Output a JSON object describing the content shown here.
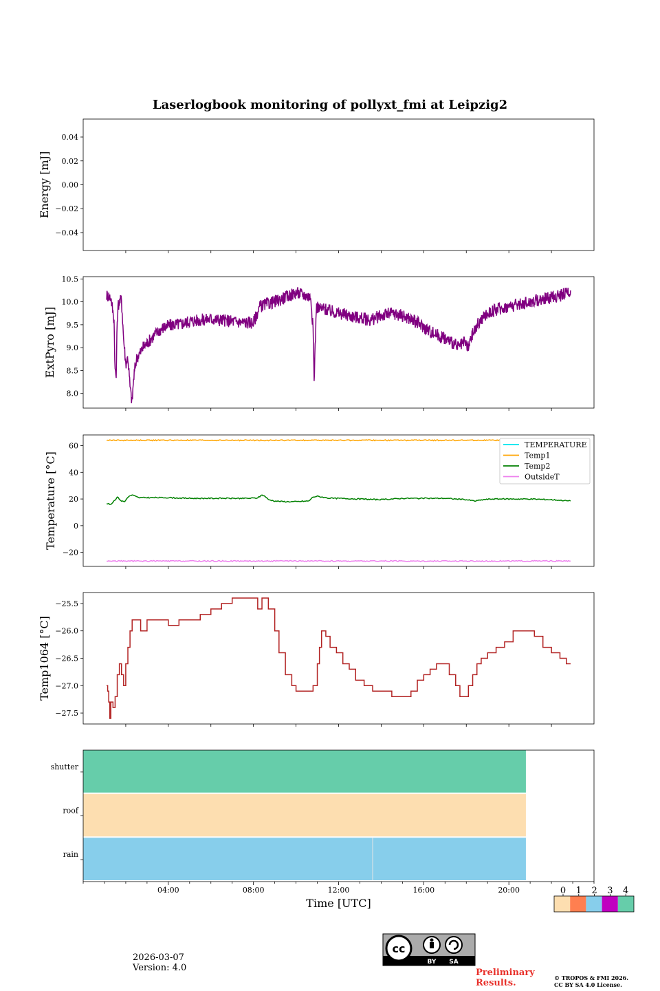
{
  "title": "Laserlogbook monitoring of pollyxt_fmi at Leipzig2",
  "footer": {
    "date": "2026-03-07",
    "version": "Version: 4.0",
    "preliminary_line1": "Preliminary",
    "preliminary_line2": "Results.",
    "copyright_line1": "© TROPOS & FMI 2026.",
    "copyright_line2": "CC BY SA 4.0 License.",
    "license_badge": {
      "cc": "cc",
      "by": "BY",
      "sa": "SA"
    }
  },
  "colorbar": {
    "ticks": [
      "0",
      "1",
      "2",
      "3",
      "4"
    ],
    "colors": [
      "#fddeb0",
      "#ff7f50",
      "#87ceeb",
      "#c000c0",
      "#66cdaa"
    ]
  },
  "chart_data": [
    {
      "type": "line",
      "panel": "energy",
      "ylabel": "Energy [mJ]",
      "ylim": [
        -0.055,
        0.055
      ],
      "yticks": [
        0.04,
        0.02,
        0.0,
        -0.02,
        -0.04
      ],
      "ytick_labels": [
        "0.04",
        "0.02",
        "0.00",
        "−0.02",
        "−0.04"
      ],
      "xlim": [
        0,
        24
      ],
      "series": []
    },
    {
      "type": "line",
      "panel": "extpyro",
      "ylabel": "ExtPyro [mJ]",
      "ylim": [
        7.68,
        10.55
      ],
      "yticks": [
        10.5,
        10.0,
        9.5,
        9.0,
        8.5,
        8.0
      ],
      "ytick_labels": [
        "10.5",
        "10.0",
        "9.5",
        "9.0",
        "8.5",
        "8.0"
      ],
      "xlim": [
        0,
        24
      ],
      "series": [
        {
          "name": "ExtPyro",
          "color": "#800080",
          "x": [
            1.1,
            1.3,
            1.45,
            1.5,
            1.55,
            1.6,
            1.65,
            1.7,
            1.8,
            1.9,
            2.0,
            2.1,
            2.2,
            2.25,
            2.3,
            2.35,
            2.4,
            2.5,
            2.6,
            2.7,
            2.8,
            3.0,
            3.2,
            3.5,
            3.8,
            4.2,
            4.6,
            5.0,
            5.5,
            6.0,
            6.5,
            7.0,
            7.5,
            8.0,
            8.3,
            8.6,
            9.0,
            9.5,
            10.0,
            10.4,
            10.7,
            10.8,
            10.85,
            10.9,
            10.95,
            11.0,
            11.1,
            11.3,
            11.6,
            12.0,
            12.5,
            13.0,
            13.5,
            14.0,
            14.5,
            15.0,
            15.5,
            16.0,
            16.5,
            17.0,
            17.4,
            17.6,
            17.9,
            18.1,
            18.3,
            18.6,
            19.0,
            19.5,
            20.0,
            20.5,
            21.0,
            21.5,
            22.0,
            22.5,
            22.9
          ],
          "values": [
            10.15,
            10.1,
            9.6,
            8.5,
            8.35,
            9.6,
            9.95,
            10.0,
            10.05,
            9.2,
            8.65,
            8.8,
            8.15,
            7.95,
            7.8,
            8.2,
            8.45,
            8.75,
            8.85,
            8.9,
            9.0,
            9.1,
            9.2,
            9.35,
            9.45,
            9.5,
            9.52,
            9.58,
            9.6,
            9.63,
            9.6,
            9.58,
            9.55,
            9.55,
            9.9,
            9.95,
            10.0,
            10.1,
            10.2,
            10.15,
            10.1,
            9.4,
            8.3,
            9.0,
            9.85,
            9.9,
            9.85,
            9.85,
            9.8,
            9.75,
            9.7,
            9.65,
            9.6,
            9.7,
            9.75,
            9.7,
            9.6,
            9.45,
            9.3,
            9.2,
            9.1,
            9.0,
            9.1,
            9.0,
            9.3,
            9.55,
            9.75,
            9.85,
            9.9,
            9.95,
            10.0,
            10.05,
            10.1,
            10.15,
            10.25
          ]
        }
      ]
    },
    {
      "type": "line",
      "panel": "temperature",
      "ylabel": "Temperature [°C]",
      "ylim": [
        -30.5,
        68
      ],
      "yticks": [
        60,
        40,
        20,
        0,
        -20
      ],
      "ytick_labels": [
        "60",
        "40",
        "20",
        "0",
        "−20"
      ],
      "xlim": [
        0,
        24
      ],
      "legend": [
        "TEMPERATURE",
        "Temp1",
        "Temp2",
        "OutsideT"
      ],
      "series": [
        {
          "name": "TEMPERATURE",
          "color": "#00e5ee",
          "x": [],
          "values": []
        },
        {
          "name": "Temp1",
          "color": "#ffa500",
          "x": [
            1.1,
            22.9
          ],
          "values": [
            64,
            64
          ]
        },
        {
          "name": "Temp2",
          "color": "#008000",
          "x": [
            1.1,
            1.3,
            1.5,
            1.6,
            1.8,
            1.95,
            2.1,
            2.3,
            2.6,
            3.0,
            4.0,
            5.0,
            6.0,
            7.0,
            7.8,
            8.2,
            8.4,
            8.55,
            8.7,
            9.0,
            9.5,
            10.0,
            10.6,
            10.8,
            11.0,
            11.2,
            11.6,
            12.0,
            13.0,
            14.0,
            15.0,
            16.0,
            17.0,
            18.0,
            18.4,
            18.8,
            19.2,
            20.0,
            21.0,
            22.0,
            22.9
          ],
          "values": [
            16.5,
            16.0,
            19.5,
            21.5,
            18.5,
            18.0,
            21.5,
            23.0,
            21.0,
            21.0,
            21.0,
            20.5,
            20.5,
            20.5,
            20.5,
            20.8,
            23.0,
            22.0,
            19.5,
            18.5,
            18.0,
            18.0,
            18.5,
            21.5,
            22.0,
            21.5,
            20.5,
            20.5,
            20.0,
            19.5,
            20.5,
            20.5,
            20.5,
            19.5,
            18.5,
            19.5,
            20.0,
            20.0,
            20.0,
            19.5,
            18.5
          ]
        },
        {
          "name": "OutsideT",
          "color": "#ee82ee",
          "x": [
            1.1,
            22.9
          ],
          "values": [
            -26.5,
            -26.5
          ]
        }
      ]
    },
    {
      "type": "line",
      "panel": "temp1064",
      "ylabel": "Temp1064 [°C]",
      "ylim": [
        -27.7,
        -25.3
      ],
      "yticks": [
        -25.5,
        -26.0,
        -26.5,
        -27.0,
        -27.5
      ],
      "ytick_labels": [
        "−25.5",
        "−26.0",
        "−26.5",
        "−27.0",
        "−27.5"
      ],
      "xlim": [
        0.0,
        24.0
      ],
      "series": [
        {
          "name": "Temp1064",
          "color": "#b22222",
          "x": [
            1.1,
            1.15,
            1.2,
            1.25,
            1.3,
            1.4,
            1.5,
            1.6,
            1.7,
            1.8,
            1.9,
            2.0,
            2.1,
            2.2,
            2.3,
            2.5,
            2.7,
            3.0,
            3.5,
            4.0,
            4.5,
            5.0,
            5.5,
            6.0,
            6.5,
            7.0,
            7.5,
            8.0,
            8.2,
            8.4,
            8.5,
            8.7,
            9.0,
            9.2,
            9.5,
            9.8,
            10.0,
            10.5,
            10.8,
            11.0,
            11.1,
            11.2,
            11.4,
            11.6,
            11.9,
            12.2,
            12.5,
            12.8,
            13.2,
            13.6,
            14.0,
            14.5,
            15.0,
            15.4,
            15.7,
            16.0,
            16.3,
            16.6,
            16.9,
            17.2,
            17.5,
            17.7,
            17.9,
            18.1,
            18.3,
            18.5,
            18.7,
            19.0,
            19.4,
            19.8,
            20.2,
            20.5,
            20.8,
            21.2,
            21.6,
            22.0,
            22.4,
            22.7,
            22.9
          ],
          "values": [
            -27.0,
            -27.1,
            -27.3,
            -27.6,
            -27.3,
            -27.4,
            -27.2,
            -26.8,
            -26.6,
            -26.8,
            -27.0,
            -26.6,
            -26.3,
            -26.0,
            -25.8,
            -25.8,
            -26.0,
            -25.8,
            -25.8,
            -25.9,
            -25.8,
            -25.8,
            -25.7,
            -25.6,
            -25.5,
            -25.4,
            -25.4,
            -25.4,
            -25.6,
            -25.4,
            -25.4,
            -25.6,
            -26.0,
            -26.4,
            -26.8,
            -27.0,
            -27.1,
            -27.1,
            -27.0,
            -26.6,
            -26.3,
            -26.0,
            -26.1,
            -26.3,
            -26.4,
            -26.6,
            -26.7,
            -26.9,
            -27.0,
            -27.1,
            -27.1,
            -27.2,
            -27.2,
            -27.1,
            -26.9,
            -26.8,
            -26.7,
            -26.6,
            -26.6,
            -26.8,
            -27.0,
            -27.2,
            -27.2,
            -27.0,
            -26.8,
            -26.6,
            -26.5,
            -26.4,
            -26.3,
            -26.2,
            -26.0,
            -26.0,
            -26.0,
            -26.1,
            -26.3,
            -26.4,
            -26.5,
            -26.6,
            -26.6
          ]
        }
      ]
    },
    {
      "type": "heatmap",
      "panel": "status",
      "rows": [
        "shutter",
        "roof",
        "rain"
      ],
      "xlim": [
        0,
        24
      ],
      "xticks": [
        4,
        8,
        12,
        16,
        20
      ],
      "xtick_labels": [
        "04:00",
        "08:00",
        "12:00",
        "16:00",
        "20:00"
      ],
      "xlabel": "Time [UTC]",
      "segments": {
        "shutter": [
          {
            "start": 0.0,
            "end": 20.8,
            "status": 4
          }
        ],
        "roof": [
          {
            "start": 0.0,
            "end": 20.8,
            "status": 0
          }
        ],
        "rain": [
          {
            "start": 0.0,
            "end": 13.6,
            "status": 2
          },
          {
            "start": 13.6,
            "end": 20.8,
            "status": 2
          }
        ]
      }
    }
  ]
}
